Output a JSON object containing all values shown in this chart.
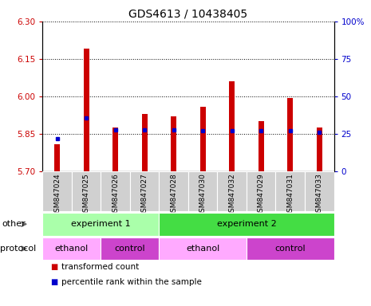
{
  "title": "GDS4613 / 10438405",
  "samples": [
    "GSM847024",
    "GSM847025",
    "GSM847026",
    "GSM847027",
    "GSM847028",
    "GSM847030",
    "GSM847032",
    "GSM847029",
    "GSM847031",
    "GSM847033"
  ],
  "bar_bottom": 5.7,
  "transformed_counts": [
    5.81,
    6.19,
    5.875,
    5.93,
    5.92,
    5.96,
    6.06,
    5.9,
    5.995,
    5.875
  ],
  "percentile_values": [
    5.832,
    5.915,
    5.865,
    5.865,
    5.865,
    5.862,
    5.862,
    5.862,
    5.862,
    5.855
  ],
  "ylim_left": [
    5.7,
    6.3
  ],
  "yticks_left": [
    5.7,
    5.85,
    6.0,
    6.15,
    6.3
  ],
  "yticks_right": [
    0,
    25,
    50,
    75,
    100
  ],
  "bar_color": "#cc0000",
  "percentile_color": "#0000cc",
  "bar_width": 0.18,
  "other_row": [
    {
      "label": "experiment 1",
      "start": 0,
      "end": 4,
      "color": "#aaffaa"
    },
    {
      "label": "experiment 2",
      "start": 4,
      "end": 10,
      "color": "#44dd44"
    }
  ],
  "protocol_row": [
    {
      "label": "ethanol",
      "start": 0,
      "end": 2,
      "color": "#ffaaff"
    },
    {
      "label": "control",
      "start": 2,
      "end": 4,
      "color": "#cc44cc"
    },
    {
      "label": "ethanol",
      "start": 4,
      "end": 7,
      "color": "#ffaaff"
    },
    {
      "label": "control",
      "start": 7,
      "end": 10,
      "color": "#cc44cc"
    }
  ],
  "legend_items": [
    {
      "label": "transformed count",
      "color": "#cc0000"
    },
    {
      "label": "percentile rank within the sample",
      "color": "#0000cc"
    }
  ],
  "xtick_bg": "#d0d0d0"
}
